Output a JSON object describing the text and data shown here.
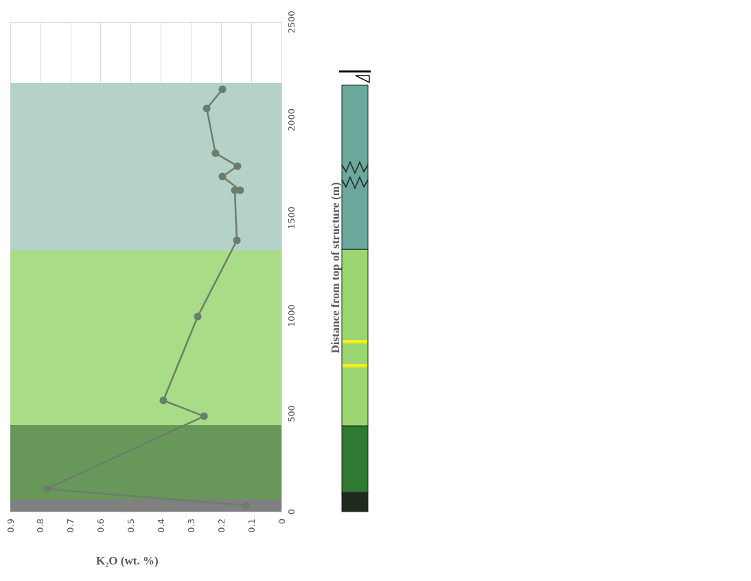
{
  "chart_data": {
    "type": "line",
    "xlabel": "K₂O (wt. %)",
    "ylabel": "Distance from top of structure (m)",
    "series": [
      {
        "color": "#6b7d6b",
        "x": [
          0.118,
          0.779,
          0.257,
          0.392,
          0.278,
          0.148,
          0.155,
          0.137,
          0.196,
          0.146,
          0.219,
          0.248,
          0.196
        ],
        "values": [
          32,
          116,
          487,
          568,
          996,
          1385,
          1641,
          1641,
          1711,
          1764,
          1830,
          2058,
          2156
        ]
      }
    ],
    "xlim": [
      0.9,
      0
    ],
    "xticks": [
      0.9,
      0.8,
      0.7,
      0.6,
      0.5,
      0.4,
      0.3,
      0.2,
      0.1,
      0
    ],
    "ylim": [
      0,
      2500
    ],
    "yticks": [
      0,
      500,
      1000,
      1500,
      2000,
      2500
    ],
    "bands": [
      {
        "axis": "y",
        "from": 0,
        "to": 63,
        "color": "#808080"
      },
      {
        "axis": "y",
        "from": 63,
        "to": 442,
        "color": "#67985a"
      },
      {
        "axis": "y",
        "from": 442,
        "to": 1332,
        "color": "#a8dc86"
      },
      {
        "axis": "y",
        "from": 1332,
        "to": 2188,
        "color": "#b4d2c8"
      }
    ],
    "grid": true,
    "marker": "circle",
    "line_style": "solid"
  }
}
